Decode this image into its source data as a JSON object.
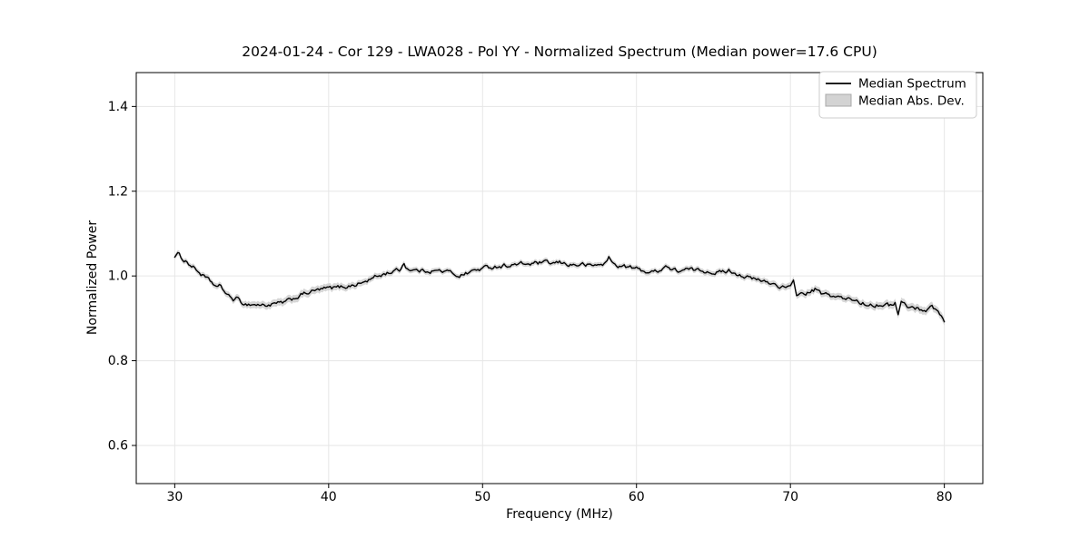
{
  "figure": {
    "background": "#ffffff"
  },
  "chart_data": {
    "type": "line",
    "title": "2024-01-24 - Cor 129 - LWA028 - Pol YY - Normalized Spectrum (Median power=17.6 CPU)",
    "xlabel": "Frequency (MHz)",
    "ylabel": "Normalized Power",
    "xlim": [
      27.5,
      82.5
    ],
    "ylim": [
      0.51,
      1.48
    ],
    "xticks": [
      30,
      40,
      50,
      60,
      70,
      80
    ],
    "yticks": [
      0.6,
      0.8,
      1.0,
      1.2,
      1.4
    ],
    "grid": true,
    "legend": {
      "position": "upper right",
      "entries": [
        {
          "label": "Median Spectrum",
          "type": "line",
          "color": "#000000"
        },
        {
          "label": "Median Abs. Dev.",
          "type": "patch",
          "fill": "#d3d3d3",
          "edge": "#a8a8a8"
        }
      ]
    },
    "series": [
      {
        "name": "Median Spectrum",
        "points": [
          [
            30.0,
            1.048
          ],
          [
            30.2,
            1.052
          ],
          [
            30.4,
            1.044
          ],
          [
            30.6,
            1.038
          ],
          [
            30.8,
            1.034
          ],
          [
            31.0,
            1.026
          ],
          [
            31.3,
            1.018
          ],
          [
            31.6,
            1.008
          ],
          [
            32.0,
            0.995
          ],
          [
            32.4,
            0.984
          ],
          [
            32.8,
            0.972
          ],
          [
            33.0,
            0.976
          ],
          [
            33.2,
            0.965
          ],
          [
            33.5,
            0.952
          ],
          [
            33.8,
            0.945
          ],
          [
            34.0,
            0.947
          ],
          [
            34.3,
            0.938
          ],
          [
            34.6,
            0.934
          ],
          [
            35.0,
            0.933
          ],
          [
            35.4,
            0.932
          ],
          [
            35.8,
            0.931
          ],
          [
            36.2,
            0.932
          ],
          [
            36.6,
            0.934
          ],
          [
            37.0,
            0.936
          ],
          [
            37.4,
            0.941
          ],
          [
            37.8,
            0.948
          ],
          [
            38.2,
            0.955
          ],
          [
            38.6,
            0.96
          ],
          [
            39.0,
            0.964
          ],
          [
            39.4,
            0.967
          ],
          [
            39.8,
            0.97
          ],
          [
            40.2,
            0.971
          ],
          [
            40.6,
            0.973
          ],
          [
            41.0,
            0.975
          ],
          [
            41.4,
            0.977
          ],
          [
            41.8,
            0.98
          ],
          [
            42.2,
            0.984
          ],
          [
            42.6,
            0.99
          ],
          [
            43.0,
            0.997
          ],
          [
            43.4,
            1.002
          ],
          [
            43.8,
            1.007
          ],
          [
            44.2,
            1.011
          ],
          [
            44.6,
            1.014
          ],
          [
            44.9,
            1.03
          ],
          [
            45.1,
            1.018
          ],
          [
            45.5,
            1.014
          ],
          [
            46.0,
            1.012
          ],
          [
            46.5,
            1.013
          ],
          [
            47.0,
            1.012
          ],
          [
            47.5,
            1.011
          ],
          [
            48.0,
            1.008
          ],
          [
            48.4,
            1.001
          ],
          [
            48.8,
            1.004
          ],
          [
            49.2,
            1.01
          ],
          [
            49.6,
            1.014
          ],
          [
            50.0,
            1.018
          ],
          [
            50.5,
            1.021
          ],
          [
            51.0,
            1.023
          ],
          [
            51.5,
            1.025
          ],
          [
            52.0,
            1.026
          ],
          [
            52.5,
            1.028
          ],
          [
            53.0,
            1.028
          ],
          [
            53.5,
            1.03
          ],
          [
            54.0,
            1.031
          ],
          [
            54.5,
            1.029
          ],
          [
            55.0,
            1.031
          ],
          [
            55.5,
            1.028
          ],
          [
            56.0,
            1.026
          ],
          [
            56.5,
            1.027
          ],
          [
            57.0,
            1.024
          ],
          [
            57.5,
            1.026
          ],
          [
            58.0,
            1.03
          ],
          [
            58.2,
            1.044
          ],
          [
            58.5,
            1.028
          ],
          [
            59.0,
            1.023
          ],
          [
            59.5,
            1.021
          ],
          [
            60.0,
            1.017
          ],
          [
            60.5,
            1.012
          ],
          [
            61.0,
            1.008
          ],
          [
            61.5,
            1.015
          ],
          [
            61.9,
            1.024
          ],
          [
            62.3,
            1.014
          ],
          [
            62.7,
            1.012
          ],
          [
            63.2,
            1.015
          ],
          [
            63.6,
            1.014
          ],
          [
            64.0,
            1.013
          ],
          [
            64.5,
            1.012
          ],
          [
            65.0,
            1.01
          ],
          [
            65.5,
            1.008
          ],
          [
            66.0,
            1.013
          ],
          [
            66.4,
            1.008
          ],
          [
            66.8,
            1.002
          ],
          [
            67.2,
            0.997
          ],
          [
            67.6,
            0.992
          ],
          [
            68.0,
            0.989
          ],
          [
            68.5,
            0.985
          ],
          [
            69.0,
            0.98
          ],
          [
            69.5,
            0.974
          ],
          [
            70.0,
            0.971
          ],
          [
            70.2,
            0.986
          ],
          [
            70.4,
            0.957
          ],
          [
            70.8,
            0.958
          ],
          [
            71.2,
            0.96
          ],
          [
            71.6,
            0.968
          ],
          [
            72.0,
            0.958
          ],
          [
            72.4,
            0.955
          ],
          [
            72.8,
            0.953
          ],
          [
            73.2,
            0.949
          ],
          [
            73.6,
            0.944
          ],
          [
            74.0,
            0.945
          ],
          [
            74.4,
            0.94
          ],
          [
            74.8,
            0.934
          ],
          [
            75.2,
            0.934
          ],
          [
            75.6,
            0.932
          ],
          [
            76.0,
            0.934
          ],
          [
            76.4,
            0.93
          ],
          [
            76.8,
            0.938
          ],
          [
            77.0,
            0.908
          ],
          [
            77.2,
            0.938
          ],
          [
            77.6,
            0.928
          ],
          [
            78.0,
            0.925
          ],
          [
            78.4,
            0.922
          ],
          [
            78.8,
            0.92
          ],
          [
            79.2,
            0.927
          ],
          [
            79.5,
            0.921
          ],
          [
            79.8,
            0.905
          ],
          [
            80.0,
            0.89
          ]
        ]
      },
      {
        "name": "Median Abs. Dev.",
        "halfwidth_points": [
          [
            30,
            0.006
          ],
          [
            33,
            0.007
          ],
          [
            35,
            0.008
          ],
          [
            38,
            0.009
          ],
          [
            41,
            0.008
          ],
          [
            44,
            0.0065
          ],
          [
            47,
            0.006
          ],
          [
            50,
            0.006
          ],
          [
            54,
            0.006
          ],
          [
            58,
            0.006
          ],
          [
            62,
            0.006
          ],
          [
            65,
            0.0065
          ],
          [
            68,
            0.007
          ],
          [
            71,
            0.008
          ],
          [
            74,
            0.008
          ],
          [
            76.5,
            0.009
          ],
          [
            78,
            0.009
          ],
          [
            80,
            0.009
          ]
        ]
      }
    ],
    "noise": {
      "amplitude": 0.0042,
      "seed": 1234,
      "step_mhz": 0.1
    }
  },
  "colors": {
    "line": "#000000",
    "band_fill": "#c8c8c8",
    "grid": "#e6e6e6",
    "spine": "#000000",
    "legend_border": "#cccccc",
    "legend_bg": "#ffffff"
  }
}
